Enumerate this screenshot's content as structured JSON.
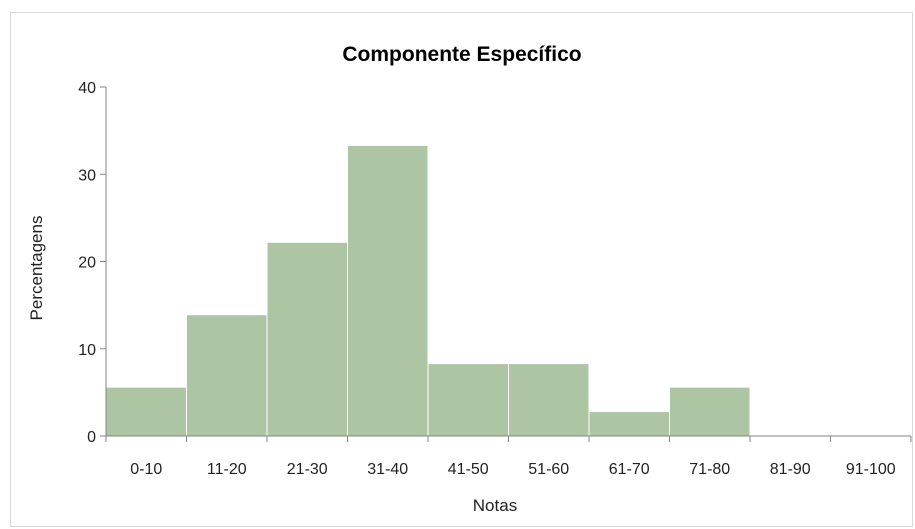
{
  "chart_data": {
    "type": "bar",
    "title": "Componente Específico",
    "xlabel": "Notas",
    "ylabel": "Percentagens",
    "categories": [
      "0-10",
      "11-20",
      "21-30",
      "31-40",
      "41-50",
      "51-60",
      "61-70",
      "71-80",
      "81-90",
      "91-100"
    ],
    "values": [
      5.6,
      13.9,
      22.2,
      33.3,
      8.3,
      8.3,
      2.8,
      5.6,
      0,
      0
    ],
    "ylim": [
      0,
      40
    ],
    "yticks": [
      "0",
      "10",
      "20",
      "30",
      "40"
    ],
    "grid": false,
    "legend": "none",
    "bar_color": "#adc5a3",
    "bar_edge_color": "#ffffff"
  }
}
